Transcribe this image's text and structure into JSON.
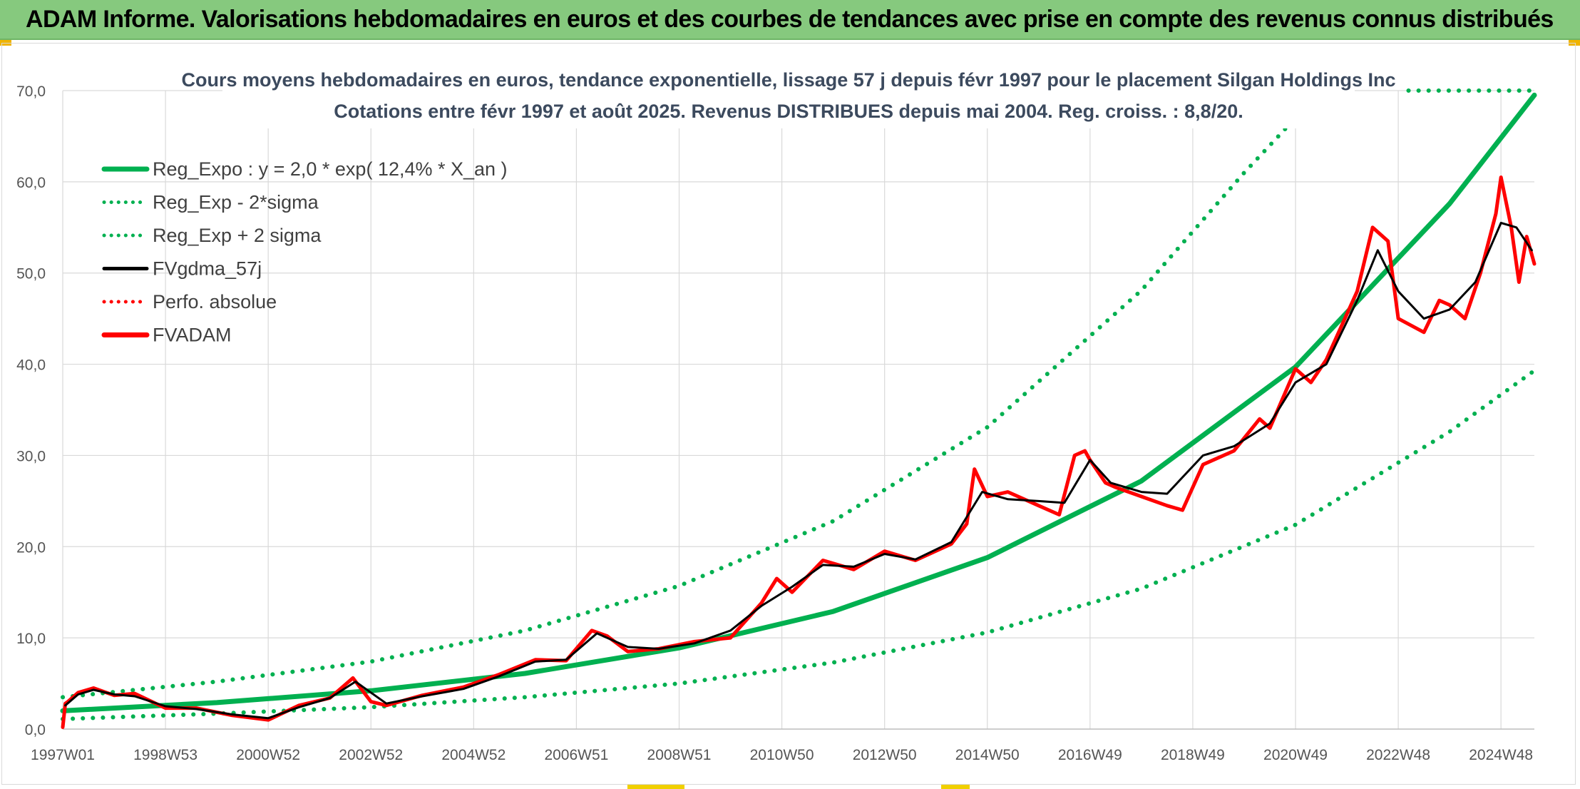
{
  "banner": {
    "title": "ADAM Informe. Valorisations hebdomadaires en euros et des courbes de tendances avec prise en compte des revenus connus distribués"
  },
  "colors": {
    "banner_bg": "#86c97e",
    "regression": "#00b050",
    "price": "#ff0000",
    "moving_average": "#000000",
    "grid": "#d9d9d9"
  },
  "chart_data": {
    "type": "line",
    "title_lines": [
      "Cours moyens hebdomadaires en euros, tendance exponentielle, lissage 57 j depuis févr 1997 pour le placement Silgan Holdings Inc",
      "Cotations entre févr 1997 et août 2025. Revenus DISTRIBUES depuis mai 2004. Reg. croiss. : 8,8/20."
    ],
    "xlabel": "",
    "ylabel": "",
    "ylim": [
      0,
      70
    ],
    "y_ticks": [
      "0,0",
      "10,0",
      "20,0",
      "30,0",
      "40,0",
      "50,0",
      "60,0",
      "70,0"
    ],
    "x_ticks": [
      "1997W01",
      "1998W53",
      "2000W52",
      "2002W52",
      "2004W52",
      "2006W51",
      "2008W51",
      "2010W50",
      "2012W50",
      "2014W50",
      "2016W49",
      "2018W49",
      "2020W49",
      "2022W48",
      "2024W48"
    ],
    "x_tick_years": [
      1997.0,
      1999.0,
      2001.0,
      2003.0,
      2005.0,
      2007.0,
      2009.0,
      2011.0,
      2013.0,
      2015.0,
      2017.0,
      2019.0,
      2021.0,
      2023.0,
      2025.0
    ],
    "x_range": [
      1997.0,
      2025.65
    ],
    "grid": true,
    "legend_position": "top-left",
    "legend": [
      {
        "label": "Reg_Expo : y = 2,0 * exp( 12,4% *  X_an )",
        "style": "solid",
        "color": "#00b050"
      },
      {
        "label": "Reg_Exp - 2*sigma",
        "style": "dotted",
        "color": "#00b050"
      },
      {
        "label": "Reg_Exp + 2 sigma",
        "style": "dotted",
        "color": "#00b050"
      },
      {
        "label": "FVgdma_57j",
        "style": "solid",
        "color": "#000000"
      },
      {
        "label": "Perfo. absolue",
        "style": "dotted",
        "color": "#ff0000"
      },
      {
        "label": "FVADAM",
        "style": "solid",
        "color": "#ff0000"
      }
    ],
    "series": [
      {
        "name": "Reg_Expo : y = 2,0 * exp( 12,4% *  X_an )",
        "x": [
          1997.0,
          2000.0,
          2003.0,
          2006.0,
          2009.0,
          2012.0,
          2015.0,
          2018.0,
          2021.0,
          2024.0,
          2025.65
        ],
        "y": [
          2.0,
          2.9,
          4.2,
          6.1,
          8.9,
          12.9,
          18.8,
          27.2,
          39.7,
          57.6,
          69.5
        ]
      },
      {
        "name": "Reg_Exp - 2*sigma",
        "x": [
          1997.0,
          2000.0,
          2003.0,
          2006.0,
          2009.0,
          2012.0,
          2015.0,
          2018.0,
          2021.0,
          2024.0,
          2025.65
        ],
        "y": [
          1.1,
          1.7,
          2.4,
          3.5,
          5.0,
          7.3,
          10.6,
          15.4,
          22.4,
          32.6,
          39.3
        ]
      },
      {
        "name": "Reg_Exp + 2 sigma",
        "x": [
          1997.0,
          2000.0,
          2003.0,
          2006.0,
          2009.0,
          2012.0,
          2015.0,
          2018.0,
          2020.0,
          2021.5,
          2023.0,
          2025.65
        ],
        "y": [
          3.5,
          5.2,
          7.4,
          10.8,
          15.7,
          22.8,
          33.1,
          48.1,
          61.0,
          70.0,
          70.0,
          70.0
        ]
      },
      {
        "name": "FVgdma_57j",
        "x": [
          1997.05,
          1997.3,
          1997.6,
          1998.0,
          1998.4,
          1999.0,
          1999.6,
          2000.3,
          2001.0,
          2001.6,
          2002.2,
          2002.7,
          2003.3,
          2004.0,
          2004.8,
          2005.5,
          2006.2,
          2006.8,
          2007.4,
          2008.0,
          2008.6,
          2009.3,
          2010.0,
          2010.6,
          2011.2,
          2011.8,
          2012.4,
          2013.0,
          2013.6,
          2014.3,
          2014.9,
          2015.4,
          2016.0,
          2016.5,
          2017.0,
          2017.4,
          2018.0,
          2018.5,
          2019.2,
          2019.8,
          2020.5,
          2021.0,
          2021.6,
          2022.2,
          2022.6,
          2023.0,
          2023.5,
          2024.0,
          2024.5,
          2025.0,
          2025.3,
          2025.6
        ],
        "y": [
          2.6,
          3.8,
          4.3,
          3.8,
          3.6,
          2.5,
          2.2,
          1.6,
          1.2,
          2.4,
          3.4,
          5.2,
          2.8,
          3.6,
          4.4,
          5.8,
          7.4,
          7.6,
          10.5,
          9.0,
          8.8,
          9.4,
          10.8,
          13.5,
          15.6,
          18.0,
          17.8,
          19.2,
          18.6,
          20.5,
          26.0,
          25.2,
          25.0,
          24.8,
          29.5,
          27.0,
          26.0,
          25.8,
          30.0,
          31.0,
          33.5,
          38.0,
          40.0,
          47.0,
          52.5,
          48.0,
          45.0,
          46.0,
          49.0,
          55.5,
          55.0,
          52.5
        ]
      },
      {
        "name": "FVADAM",
        "x": [
          1997.0,
          1997.05,
          1997.1,
          1997.3,
          1997.6,
          1998.0,
          1998.4,
          1999.0,
          1999.6,
          2000.3,
          2001.0,
          2001.6,
          2002.2,
          2002.65,
          2003.0,
          2003.3,
          2004.0,
          2004.8,
          2005.5,
          2006.2,
          2006.8,
          2007.3,
          2007.6,
          2008.0,
          2008.6,
          2009.3,
          2010.0,
          2010.6,
          2010.9,
          2011.2,
          2011.8,
          2012.4,
          2013.0,
          2013.6,
          2014.3,
          2014.6,
          2014.75,
          2015.0,
          2015.4,
          2016.0,
          2016.4,
          2016.7,
          2016.9,
          2017.0,
          2017.3,
          2017.5,
          2018.0,
          2018.5,
          2018.8,
          2019.2,
          2019.8,
          2020.3,
          2020.5,
          2021.0,
          2021.3,
          2021.6,
          2022.2,
          2022.5,
          2022.8,
          2023.0,
          2023.5,
          2023.8,
          2024.0,
          2024.3,
          2024.6,
          2024.9,
          2025.0,
          2025.2,
          2025.35,
          2025.5,
          2025.65
        ],
        "y": [
          0.2,
          2.8,
          3.0,
          4.0,
          4.5,
          3.7,
          3.9,
          2.3,
          2.3,
          1.5,
          1.0,
          2.6,
          3.4,
          5.6,
          3.0,
          2.6,
          3.7,
          4.6,
          6.0,
          7.6,
          7.5,
          10.8,
          10.2,
          8.5,
          8.8,
          9.6,
          10.0,
          13.8,
          16.5,
          15.0,
          18.5,
          17.5,
          19.5,
          18.5,
          20.3,
          22.5,
          28.5,
          25.5,
          26.0,
          24.5,
          23.5,
          30.0,
          30.5,
          29.5,
          27.0,
          26.5,
          25.5,
          24.5,
          24.0,
          29.0,
          30.5,
          34.0,
          33.0,
          39.5,
          38.0,
          40.5,
          48.0,
          55.0,
          53.5,
          45.0,
          43.5,
          47.0,
          46.5,
          45.0,
          50.0,
          56.5,
          60.5,
          55.0,
          49.0,
          54.0,
          51.0
        ]
      }
    ]
  }
}
